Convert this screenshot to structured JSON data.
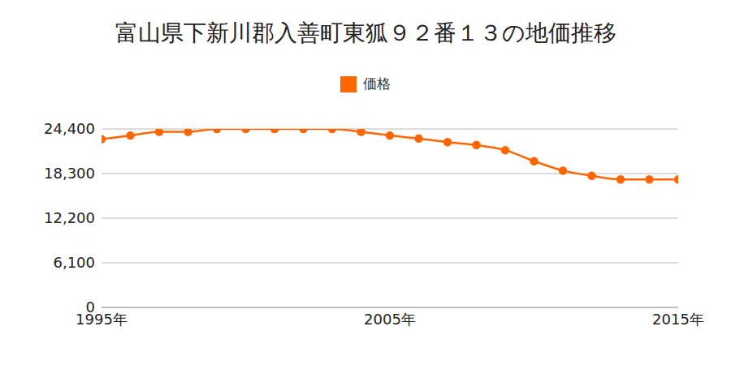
{
  "chart_data": {
    "type": "line",
    "title": "富山県下新川郡入善町東狐９２番１３の地価推移",
    "x": [
      1995,
      1996,
      1997,
      1998,
      1999,
      2000,
      2001,
      2002,
      2003,
      2004,
      2005,
      2006,
      2007,
      2008,
      2009,
      2010,
      2011,
      2012,
      2013,
      2014,
      2015
    ],
    "series": [
      {
        "name": "価格",
        "color": "#ff6600",
        "values": [
          23000,
          23500,
          24000,
          24000,
          24400,
          24400,
          24400,
          24400,
          24400,
          24000,
          23500,
          23100,
          22600,
          22200,
          21500,
          20000,
          18700,
          18000,
          17500,
          17500,
          17500
        ]
      }
    ],
    "xlim": [
      1995,
      2015
    ],
    "xticks": [
      {
        "value": 1995,
        "label": "1995年"
      },
      {
        "value": 2005,
        "label": "2005年"
      },
      {
        "value": 2015,
        "label": "2015年"
      }
    ],
    "ylim": [
      0,
      24400
    ],
    "yticks": [
      0,
      {
        "value": 6100,
        "label": "6,100"
      },
      {
        "value": 12200,
        "label": "12,200"
      },
      {
        "value": 18300,
        "label": "18,300"
      },
      {
        "value": 24400,
        "label": "24,400"
      }
    ],
    "grid": true,
    "legend": "top",
    "marker": "circle"
  }
}
